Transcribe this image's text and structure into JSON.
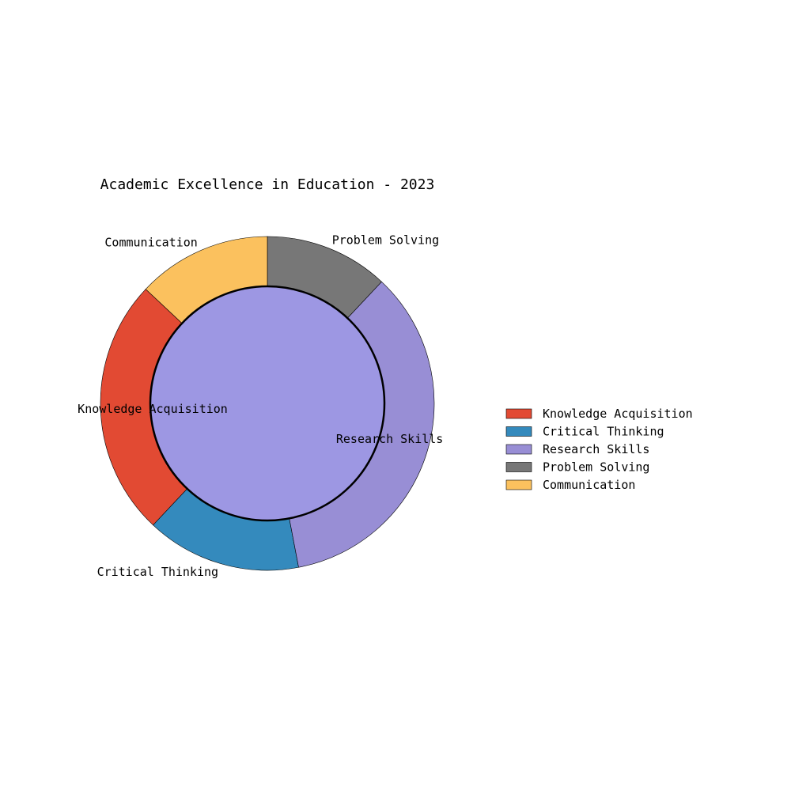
{
  "chart_data": {
    "type": "pie",
    "title": "Academic Excellence in Education - 2023",
    "series": [
      {
        "name": "Knowledge Acquisition",
        "value": 25,
        "color": "#e24a33"
      },
      {
        "name": "Critical Thinking",
        "value": 15,
        "color": "#348abd"
      },
      {
        "name": "Research Skills",
        "value": 35,
        "color": "#988ed5"
      },
      {
        "name": "Problem Solving",
        "value": 12,
        "color": "#777777"
      },
      {
        "name": "Communication",
        "value": 13,
        "color": "#fbc15e"
      }
    ],
    "donut": true,
    "center_fill": "#9d97e3",
    "legend_position": "right"
  }
}
